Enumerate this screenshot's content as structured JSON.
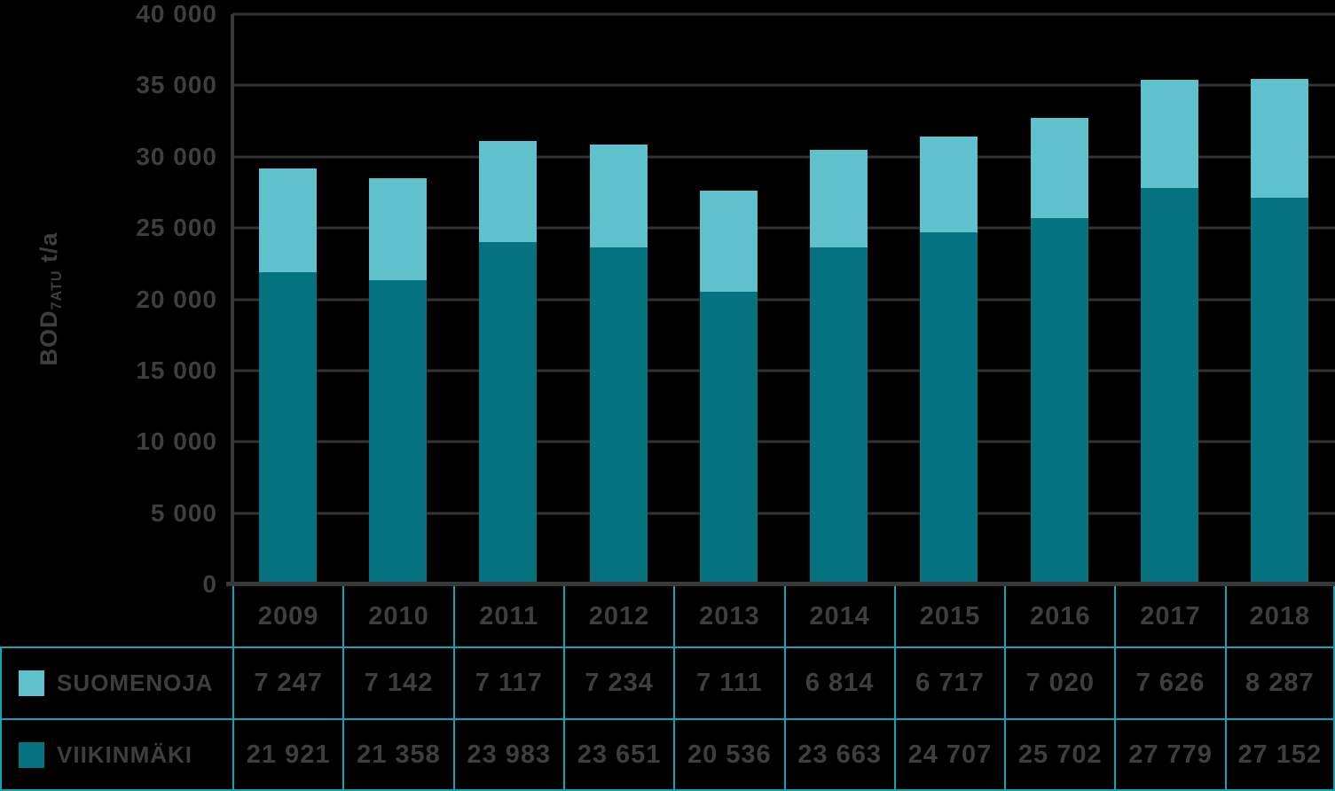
{
  "colors": {
    "background": "#000000",
    "suomenoja": "#5FC1CC",
    "viikinmaki": "#04737F",
    "grid": "#333333",
    "axis": "#383838",
    "text": "#3E3E3E",
    "table_border": "#14A3B3"
  },
  "y_axis": {
    "title_main": "BOD",
    "title_sub": "7ATU",
    "title_unit": " t/a",
    "tick_labels": [
      "40 000",
      "35 000",
      "30 000",
      "25 000",
      "20 000",
      "15 000",
      "10 000",
      "5 000",
      "0"
    ]
  },
  "chart_data": {
    "type": "bar",
    "stacked": true,
    "title": "",
    "ylabel": "BOD7ATU t/a",
    "ylim": [
      0,
      40000
    ],
    "ytick_step": 5000,
    "grid": true,
    "legend_position": "table rows below chart",
    "categories": [
      "2009",
      "2010",
      "2011",
      "2012",
      "2013",
      "2014",
      "2015",
      "2016",
      "2017",
      "2018"
    ],
    "series": [
      {
        "name": "VIIKINMÄKI",
        "color_key": "viikinmaki",
        "stack_position": "bottom",
        "values": [
          21921,
          21358,
          23983,
          23651,
          20536,
          23663,
          24707,
          25702,
          27779,
          27152
        ]
      },
      {
        "name": "SUOMENOJA",
        "color_key": "suomenoja",
        "stack_position": "top",
        "values": [
          7247,
          7142,
          7117,
          7234,
          7111,
          6814,
          6717,
          7020,
          7626,
          8287
        ]
      }
    ]
  },
  "table": {
    "year_headers": [
      "2009",
      "2010",
      "2011",
      "2012",
      "2013",
      "2014",
      "2015",
      "2016",
      "2017",
      "2018"
    ],
    "rows": [
      {
        "label": "SUOMENOJA",
        "swatch_color_key": "suomenoja",
        "values": [
          "7 247",
          "7 142",
          "7 117",
          "7 234",
          "7 111",
          "6 814",
          "6 717",
          "7 020",
          "7 626",
          "8 287"
        ]
      },
      {
        "label": "VIIKINMÄKI",
        "swatch_color_key": "viikinmaki",
        "values": [
          "21 921",
          "21 358",
          "23 983",
          "23 651",
          "20 536",
          "23 663",
          "24 707",
          "25 702",
          "27 779",
          "27 152"
        ]
      }
    ]
  }
}
